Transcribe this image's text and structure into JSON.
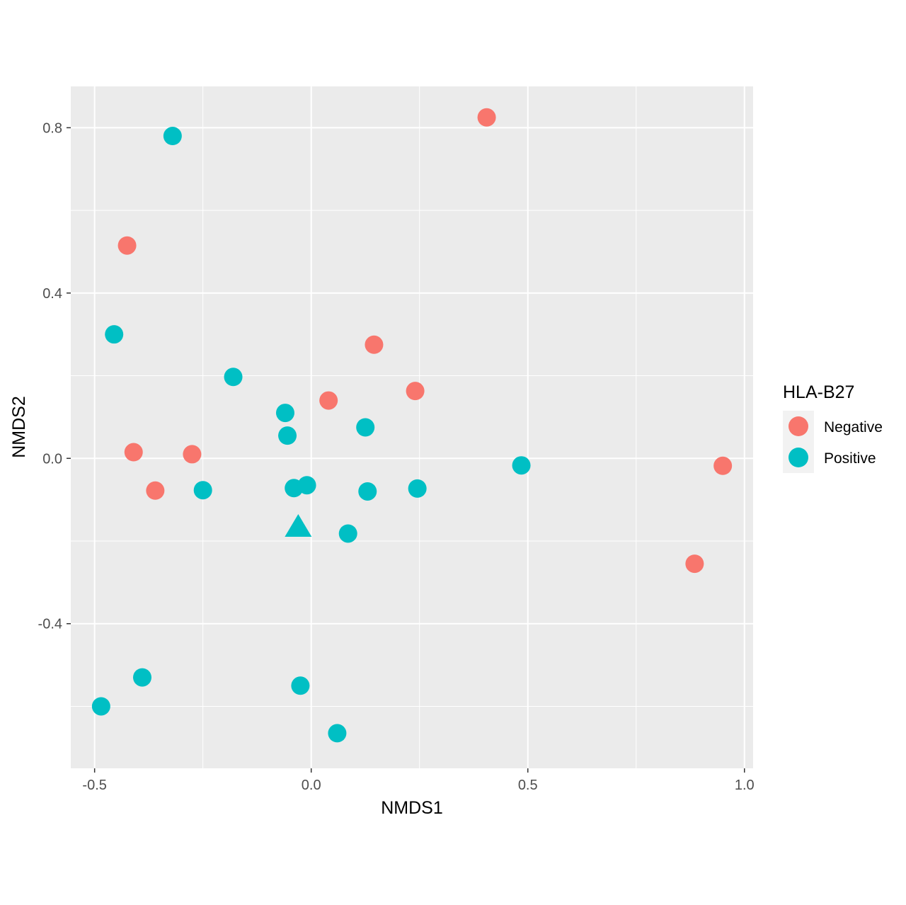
{
  "chart_data": {
    "type": "scatter",
    "title": "",
    "xlabel": "NMDS1",
    "ylabel": "NMDS2",
    "xlim": [
      -0.555,
      1.02
    ],
    "ylim": [
      -0.75,
      0.9
    ],
    "xticks": [
      -0.5,
      0.0,
      0.5,
      1.0
    ],
    "xtick_labels": [
      "-0.5",
      "0.0",
      "0.5",
      "1.0"
    ],
    "yticks": [
      -0.4,
      0.0,
      0.4,
      0.8
    ],
    "ytick_labels": [
      "-0.4",
      "0.0",
      "0.4",
      "0.8"
    ],
    "grid": true,
    "background": "#ebebeb",
    "legend": {
      "title": "HLA-B27",
      "position": "right",
      "entries": [
        {
          "label": "Negative",
          "color": "#f8766d"
        },
        {
          "label": "Positive",
          "color": "#00bfc4"
        }
      ]
    },
    "series": [
      {
        "name": "Negative",
        "color": "#f8766d",
        "points": [
          {
            "x": 0.405,
            "y": 0.825
          },
          {
            "x": -0.425,
            "y": 0.515
          },
          {
            "x": 0.145,
            "y": 0.275
          },
          {
            "x": 0.24,
            "y": 0.163
          },
          {
            "x": 0.04,
            "y": 0.14
          },
          {
            "x": -0.41,
            "y": 0.015
          },
          {
            "x": -0.275,
            "y": 0.01
          },
          {
            "x": -0.36,
            "y": -0.078
          },
          {
            "x": 0.95,
            "y": -0.018
          },
          {
            "x": 0.885,
            "y": -0.255
          }
        ]
      },
      {
        "name": "Positive",
        "color": "#00bfc4",
        "points": [
          {
            "x": -0.32,
            "y": 0.78
          },
          {
            "x": -0.455,
            "y": 0.3
          },
          {
            "x": -0.18,
            "y": 0.197
          },
          {
            "x": -0.06,
            "y": 0.11
          },
          {
            "x": -0.055,
            "y": 0.055
          },
          {
            "x": 0.125,
            "y": 0.075
          },
          {
            "x": -0.25,
            "y": -0.077
          },
          {
            "x": -0.04,
            "y": -0.072
          },
          {
            "x": -0.01,
            "y": -0.065
          },
          {
            "x": 0.13,
            "y": -0.08
          },
          {
            "x": 0.245,
            "y": -0.073
          },
          {
            "x": 0.485,
            "y": -0.017
          },
          {
            "x": 0.085,
            "y": -0.182
          },
          {
            "x": -0.39,
            "y": -0.53
          },
          {
            "x": -0.485,
            "y": -0.6
          },
          {
            "x": -0.025,
            "y": -0.55
          },
          {
            "x": 0.06,
            "y": -0.665
          }
        ]
      }
    ],
    "special_points": [
      {
        "series": "Positive",
        "shape": "triangle",
        "x": -0.03,
        "y": -0.165
      }
    ]
  }
}
